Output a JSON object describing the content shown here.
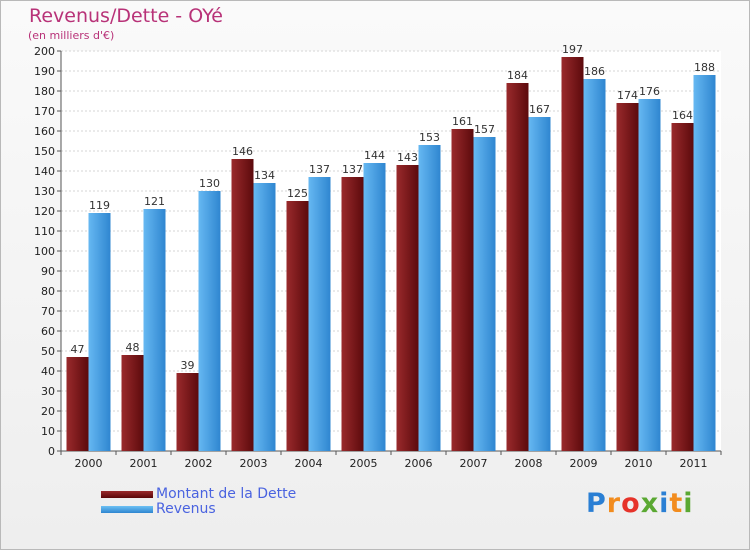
{
  "header": {
    "title": "Revenus/Dette - OYé",
    "subtitle": "(en milliers d'€)"
  },
  "chart_data": {
    "type": "bar",
    "categories": [
      "2000",
      "2001",
      "2002",
      "2003",
      "2004",
      "2005",
      "2006",
      "2007",
      "2008",
      "2009",
      "2010",
      "2011"
    ],
    "series": [
      {
        "name": "Montant de la Dette",
        "color": "#7a1416",
        "values": [
          47,
          48,
          39,
          146,
          125,
          137,
          143,
          161,
          184,
          197,
          174,
          164
        ]
      },
      {
        "name": "Revenus",
        "color": "#4aa3e6",
        "values": [
          119,
          121,
          130,
          134,
          137,
          144,
          153,
          157,
          167,
          186,
          176,
          188
        ]
      }
    ],
    "ylim": [
      0,
      200
    ],
    "yticks": [
      0,
      10,
      20,
      30,
      40,
      50,
      60,
      70,
      80,
      90,
      100,
      110,
      120,
      130,
      140,
      150,
      160,
      170,
      180,
      190,
      200
    ],
    "grid": true,
    "legend_position": "bottom-left"
  },
  "legend": {
    "items": [
      {
        "label": "Montant de la Dette",
        "color": "#7a1416"
      },
      {
        "label": "Revenus",
        "color": "#4aa3e6"
      }
    ]
  },
  "logo": {
    "letters": [
      "P",
      "r",
      "o",
      "x",
      "i",
      "t",
      "i"
    ],
    "colors": [
      "#2a7fd4",
      "#f28c1e",
      "#e6332a",
      "#5aa832",
      "#2a7fd4",
      "#f28c1e",
      "#5aa832"
    ]
  }
}
